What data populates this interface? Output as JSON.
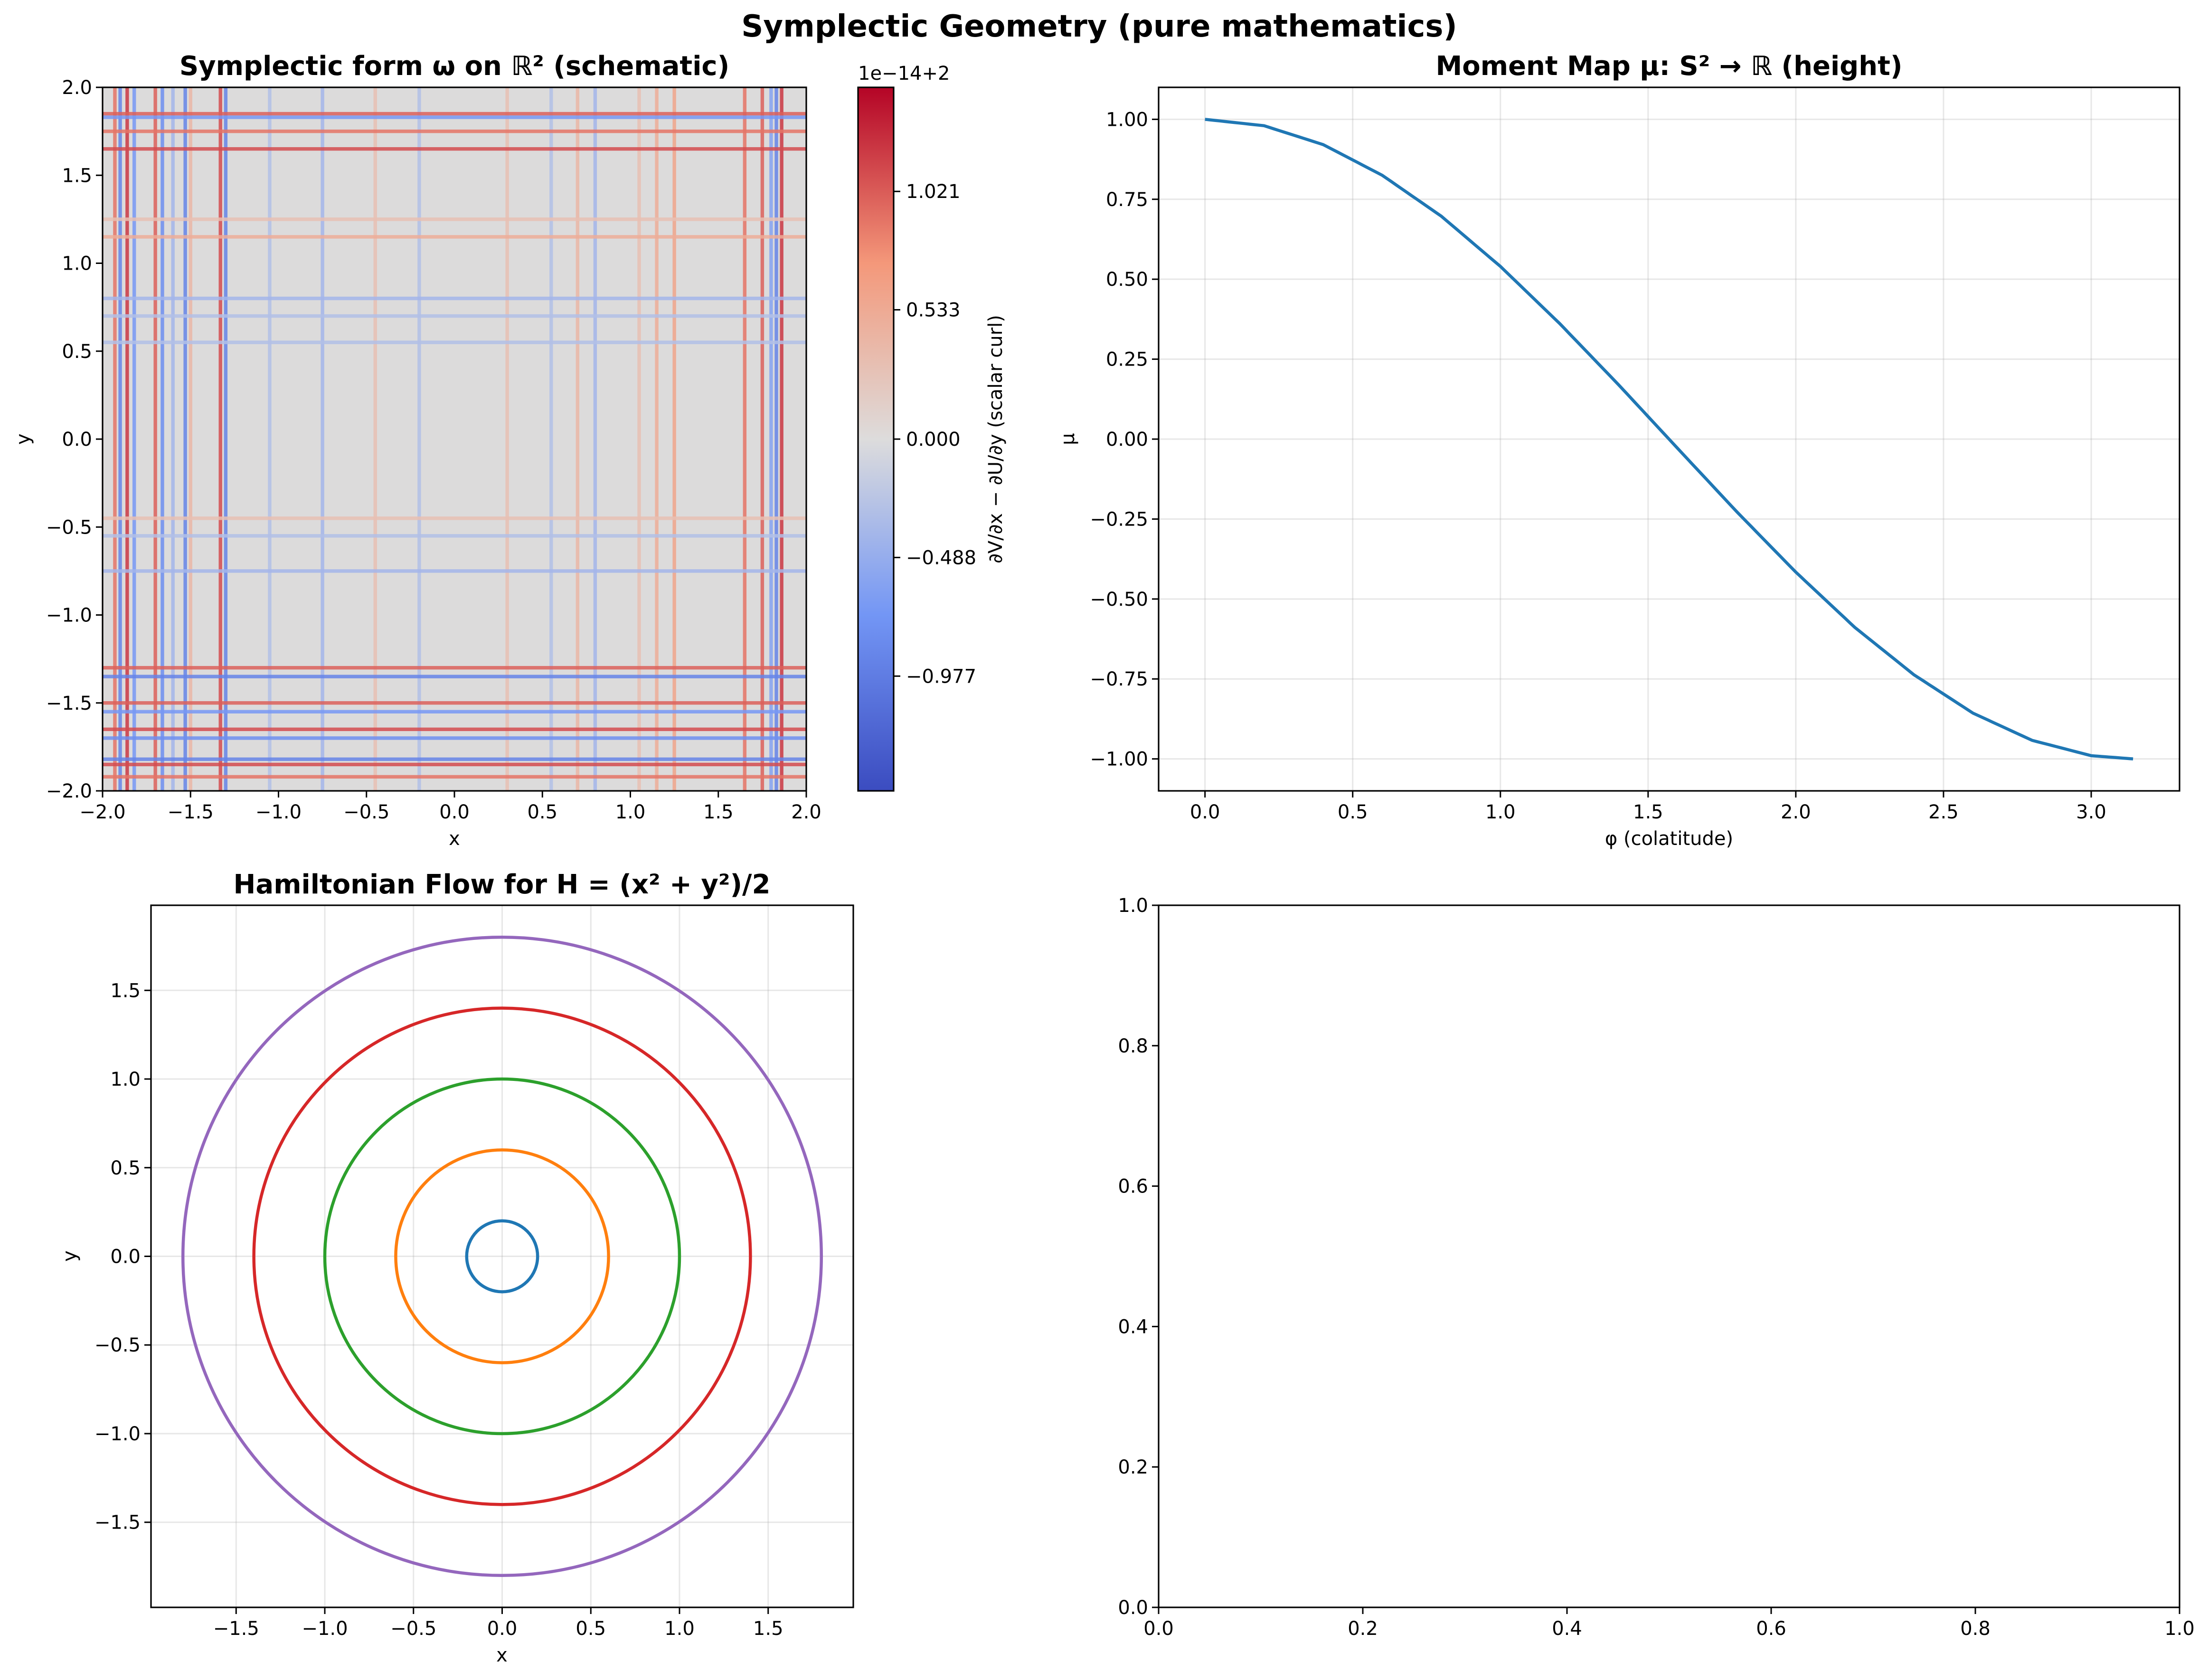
{
  "figure": {
    "suptitle": "Symplectic Geometry (pure mathematics)"
  },
  "colors": {
    "series_palette": [
      "#1f77b4",
      "#ff7f0e",
      "#2ca02c",
      "#d62728",
      "#9467bd"
    ],
    "colormap": "coolwarm",
    "grid": "#b0b0b0"
  },
  "chart_data": [
    {
      "id": "panel1",
      "type": "heatmap",
      "title": "Symplectic form ω on ℝ² (schematic)",
      "xlabel": "x",
      "ylabel": "y",
      "xlim": [
        -2.0,
        2.0
      ],
      "ylim": [
        -2.0,
        2.0
      ],
      "xticks": [
        "−2.0",
        "−1.5",
        "−1.0",
        "−0.5",
        "0.0",
        "0.5",
        "1.0",
        "1.5",
        "2.0"
      ],
      "yticks": [
        "−2.0",
        "−1.5",
        "−1.0",
        "−0.5",
        "0.0",
        "0.5",
        "1.0",
        "1.5",
        "2.0"
      ],
      "colormap": "coolwarm",
      "background_value": 0.0,
      "colorbar": {
        "label": "∂V/∂x − ∂U/∂y (scalar curl)",
        "offset_text": "1e−14+2",
        "range": [
          -1.45,
          1.45
        ],
        "ticks": [
          1.021,
          0.533,
          0.0,
          -0.488,
          -0.977
        ],
        "tick_labels": [
          "1.021",
          "0.533",
          "0.000",
          "−0.488",
          "−0.977"
        ]
      },
      "vertical_stripes": [
        {
          "x": -1.93,
          "v": 0.9
        },
        {
          "x": -1.9,
          "v": -0.9
        },
        {
          "x": -1.86,
          "v": 1.2
        },
        {
          "x": -1.82,
          "v": -0.7
        },
        {
          "x": -1.7,
          "v": 1.0
        },
        {
          "x": -1.66,
          "v": -0.8
        },
        {
          "x": -1.6,
          "v": -0.4
        },
        {
          "x": -1.53,
          "v": -0.9
        },
        {
          "x": -1.5,
          "v": 0.4
        },
        {
          "x": -1.33,
          "v": 1.1
        },
        {
          "x": -1.3,
          "v": -0.9
        },
        {
          "x": -1.05,
          "v": -0.3
        },
        {
          "x": -0.75,
          "v": -0.4
        },
        {
          "x": -0.45,
          "v": 0.3
        },
        {
          "x": -0.2,
          "v": -0.3
        },
        {
          "x": 0.3,
          "v": 0.3
        },
        {
          "x": 0.55,
          "v": -0.3
        },
        {
          "x": 0.7,
          "v": 0.4
        },
        {
          "x": 0.8,
          "v": -0.4
        },
        {
          "x": 1.05,
          "v": 0.3
        },
        {
          "x": 1.15,
          "v": 0.5
        },
        {
          "x": 1.25,
          "v": 0.6
        },
        {
          "x": 1.65,
          "v": 0.9
        },
        {
          "x": 1.75,
          "v": 1.0
        },
        {
          "x": 1.8,
          "v": -0.6
        },
        {
          "x": 1.83,
          "v": -0.9
        },
        {
          "x": 1.86,
          "v": 1.2
        }
      ],
      "horizontal_stripes": [
        {
          "y": 1.85,
          "v": 1.0
        },
        {
          "y": 1.83,
          "v": -0.7
        },
        {
          "y": 1.75,
          "v": 0.9
        },
        {
          "y": 1.65,
          "v": 1.1
        },
        {
          "y": 1.25,
          "v": 0.3
        },
        {
          "y": 1.15,
          "v": 0.5
        },
        {
          "y": 0.8,
          "v": -0.4
        },
        {
          "y": 0.7,
          "v": -0.3
        },
        {
          "y": 0.55,
          "v": -0.3
        },
        {
          "y": -0.45,
          "v": 0.3
        },
        {
          "y": -0.55,
          "v": -0.3
        },
        {
          "y": -0.75,
          "v": -0.4
        },
        {
          "y": -1.3,
          "v": 1.0
        },
        {
          "y": -1.35,
          "v": -0.9
        },
        {
          "y": -1.5,
          "v": 1.0
        },
        {
          "y": -1.55,
          "v": -0.7
        },
        {
          "y": -1.65,
          "v": 1.1
        },
        {
          "y": -1.7,
          "v": -0.8
        },
        {
          "y": -1.82,
          "v": -0.9
        },
        {
          "y": -1.85,
          "v": 1.1
        },
        {
          "y": -1.92,
          "v": 0.9
        }
      ]
    },
    {
      "id": "panel2",
      "type": "line",
      "title": "Moment Map μ: S² → ℝ (height)",
      "xlabel": "φ (colatitude)",
      "ylabel": "μ",
      "xlim": [
        -0.157,
        3.299
      ],
      "ylim": [
        -1.1,
        1.1
      ],
      "xticks": [
        0.0,
        0.5,
        1.0,
        1.5,
        2.0,
        2.5,
        3.0
      ],
      "xtick_labels": [
        "0.0",
        "0.5",
        "1.0",
        "1.5",
        "2.0",
        "2.5",
        "3.0"
      ],
      "yticks": [
        1.0,
        0.75,
        0.5,
        0.25,
        0.0,
        -0.25,
        -0.5,
        -0.75,
        -1.0
      ],
      "ytick_labels": [
        "1.00",
        "0.75",
        "0.50",
        "0.25",
        "0.00",
        "−0.25",
        "−0.50",
        "−0.75",
        "−1.00"
      ],
      "grid": true,
      "series": [
        {
          "color": "#1f77b4",
          "x": [
            0.0,
            0.2,
            0.4,
            0.6,
            0.8,
            1.0,
            1.2,
            1.4,
            1.6,
            1.8,
            2.0,
            2.2,
            2.4,
            2.6,
            2.8,
            3.0,
            3.1416
          ],
          "y": [
            1.0,
            0.98,
            0.921,
            0.825,
            0.697,
            0.54,
            0.362,
            0.17,
            -0.029,
            -0.227,
            -0.416,
            -0.589,
            -0.737,
            -0.857,
            -0.942,
            -0.99,
            -1.0
          ]
        }
      ]
    },
    {
      "id": "panel3",
      "type": "line",
      "title": "Hamiltonian Flow for H = (x² + y²)/2",
      "xlabel": "x",
      "ylabel": "y",
      "xlim": [
        -1.98,
        1.98
      ],
      "ylim": [
        -1.98,
        1.98
      ],
      "xticks": [
        -1.5,
        -1.0,
        -0.5,
        0.0,
        0.5,
        1.0,
        1.5
      ],
      "xtick_labels": [
        "−1.5",
        "−1.0",
        "−0.5",
        "0.0",
        "0.5",
        "1.0",
        "1.5"
      ],
      "yticks": [
        1.5,
        1.0,
        0.5,
        0.0,
        -0.5,
        -1.0,
        -1.5
      ],
      "ytick_labels": [
        "1.5",
        "1.0",
        "0.5",
        "0.0",
        "−0.5",
        "−1.0",
        "−1.5"
      ],
      "grid": true,
      "series": [
        {
          "radius": 0.2,
          "color": "#1f77b4"
        },
        {
          "radius": 0.6,
          "color": "#ff7f0e"
        },
        {
          "radius": 1.0,
          "color": "#2ca02c"
        },
        {
          "radius": 1.4,
          "color": "#d62728"
        },
        {
          "radius": 1.8,
          "color": "#9467bd"
        }
      ]
    },
    {
      "id": "panel4",
      "type": "line",
      "title": "",
      "xlim": [
        0.0,
        1.0
      ],
      "ylim": [
        0.0,
        1.0
      ],
      "xticks": [
        0.0,
        0.2,
        0.4,
        0.6,
        0.8,
        1.0
      ],
      "xtick_labels": [
        "0.0",
        "0.2",
        "0.4",
        "0.6",
        "0.8",
        "1.0"
      ],
      "yticks": [
        0.0,
        0.2,
        0.4,
        0.6,
        0.8,
        1.0
      ],
      "ytick_labels": [
        "0.0",
        "0.2",
        "0.4",
        "0.6",
        "0.8",
        "1.0"
      ],
      "grid": false,
      "series": []
    }
  ]
}
